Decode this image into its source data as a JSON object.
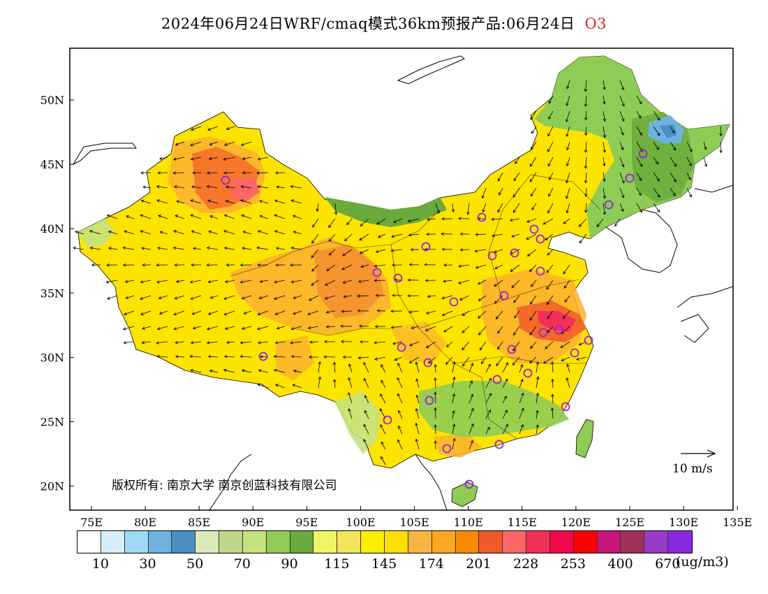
{
  "title": {
    "text": "2024年06月24日WRF/cmaq模式36km预报产品:06月24日",
    "species": "O3"
  },
  "map": {
    "lon_labels": [
      "75E",
      "80E",
      "85E",
      "90E",
      "95E",
      "100E",
      "105E",
      "110E",
      "115E",
      "120E",
      "125E",
      "130E",
      "135E"
    ],
    "lat_labels": [
      "50N",
      "45N",
      "40N",
      "35N",
      "30N",
      "25N",
      "20N"
    ],
    "copyright": "版权所有: 南京大学 南京创蓝科技有限公司",
    "wind_scale_label": "10 m/s",
    "station_marker": "circle",
    "colors": {
      "ocean": "#ffffff",
      "coastline": "#000000",
      "station": "#9a20e0"
    }
  },
  "legend": {
    "colors": [
      "#ffffff",
      "#d6effb",
      "#9fd8f4",
      "#6db2de",
      "#4a8fc4",
      "#dde8b8",
      "#bed88a",
      "#c4e27e",
      "#8ecc55",
      "#6aaa3c",
      "#eef566",
      "#f4e45a",
      "#fcee00",
      "#fde000",
      "#f9b540",
      "#fba820",
      "#fb8a00",
      "#f05a28",
      "#fe6565",
      "#f43058",
      "#f0084a",
      "#ff0000",
      "#c81578",
      "#a0305a",
      "#9a3ac8",
      "#8a2ae0"
    ],
    "labels": [
      "10",
      "30",
      "50",
      "70",
      "90",
      "115",
      "145",
      "174",
      "201",
      "228",
      "253",
      "400",
      "670"
    ],
    "unit": "(ug/m3)"
  }
}
